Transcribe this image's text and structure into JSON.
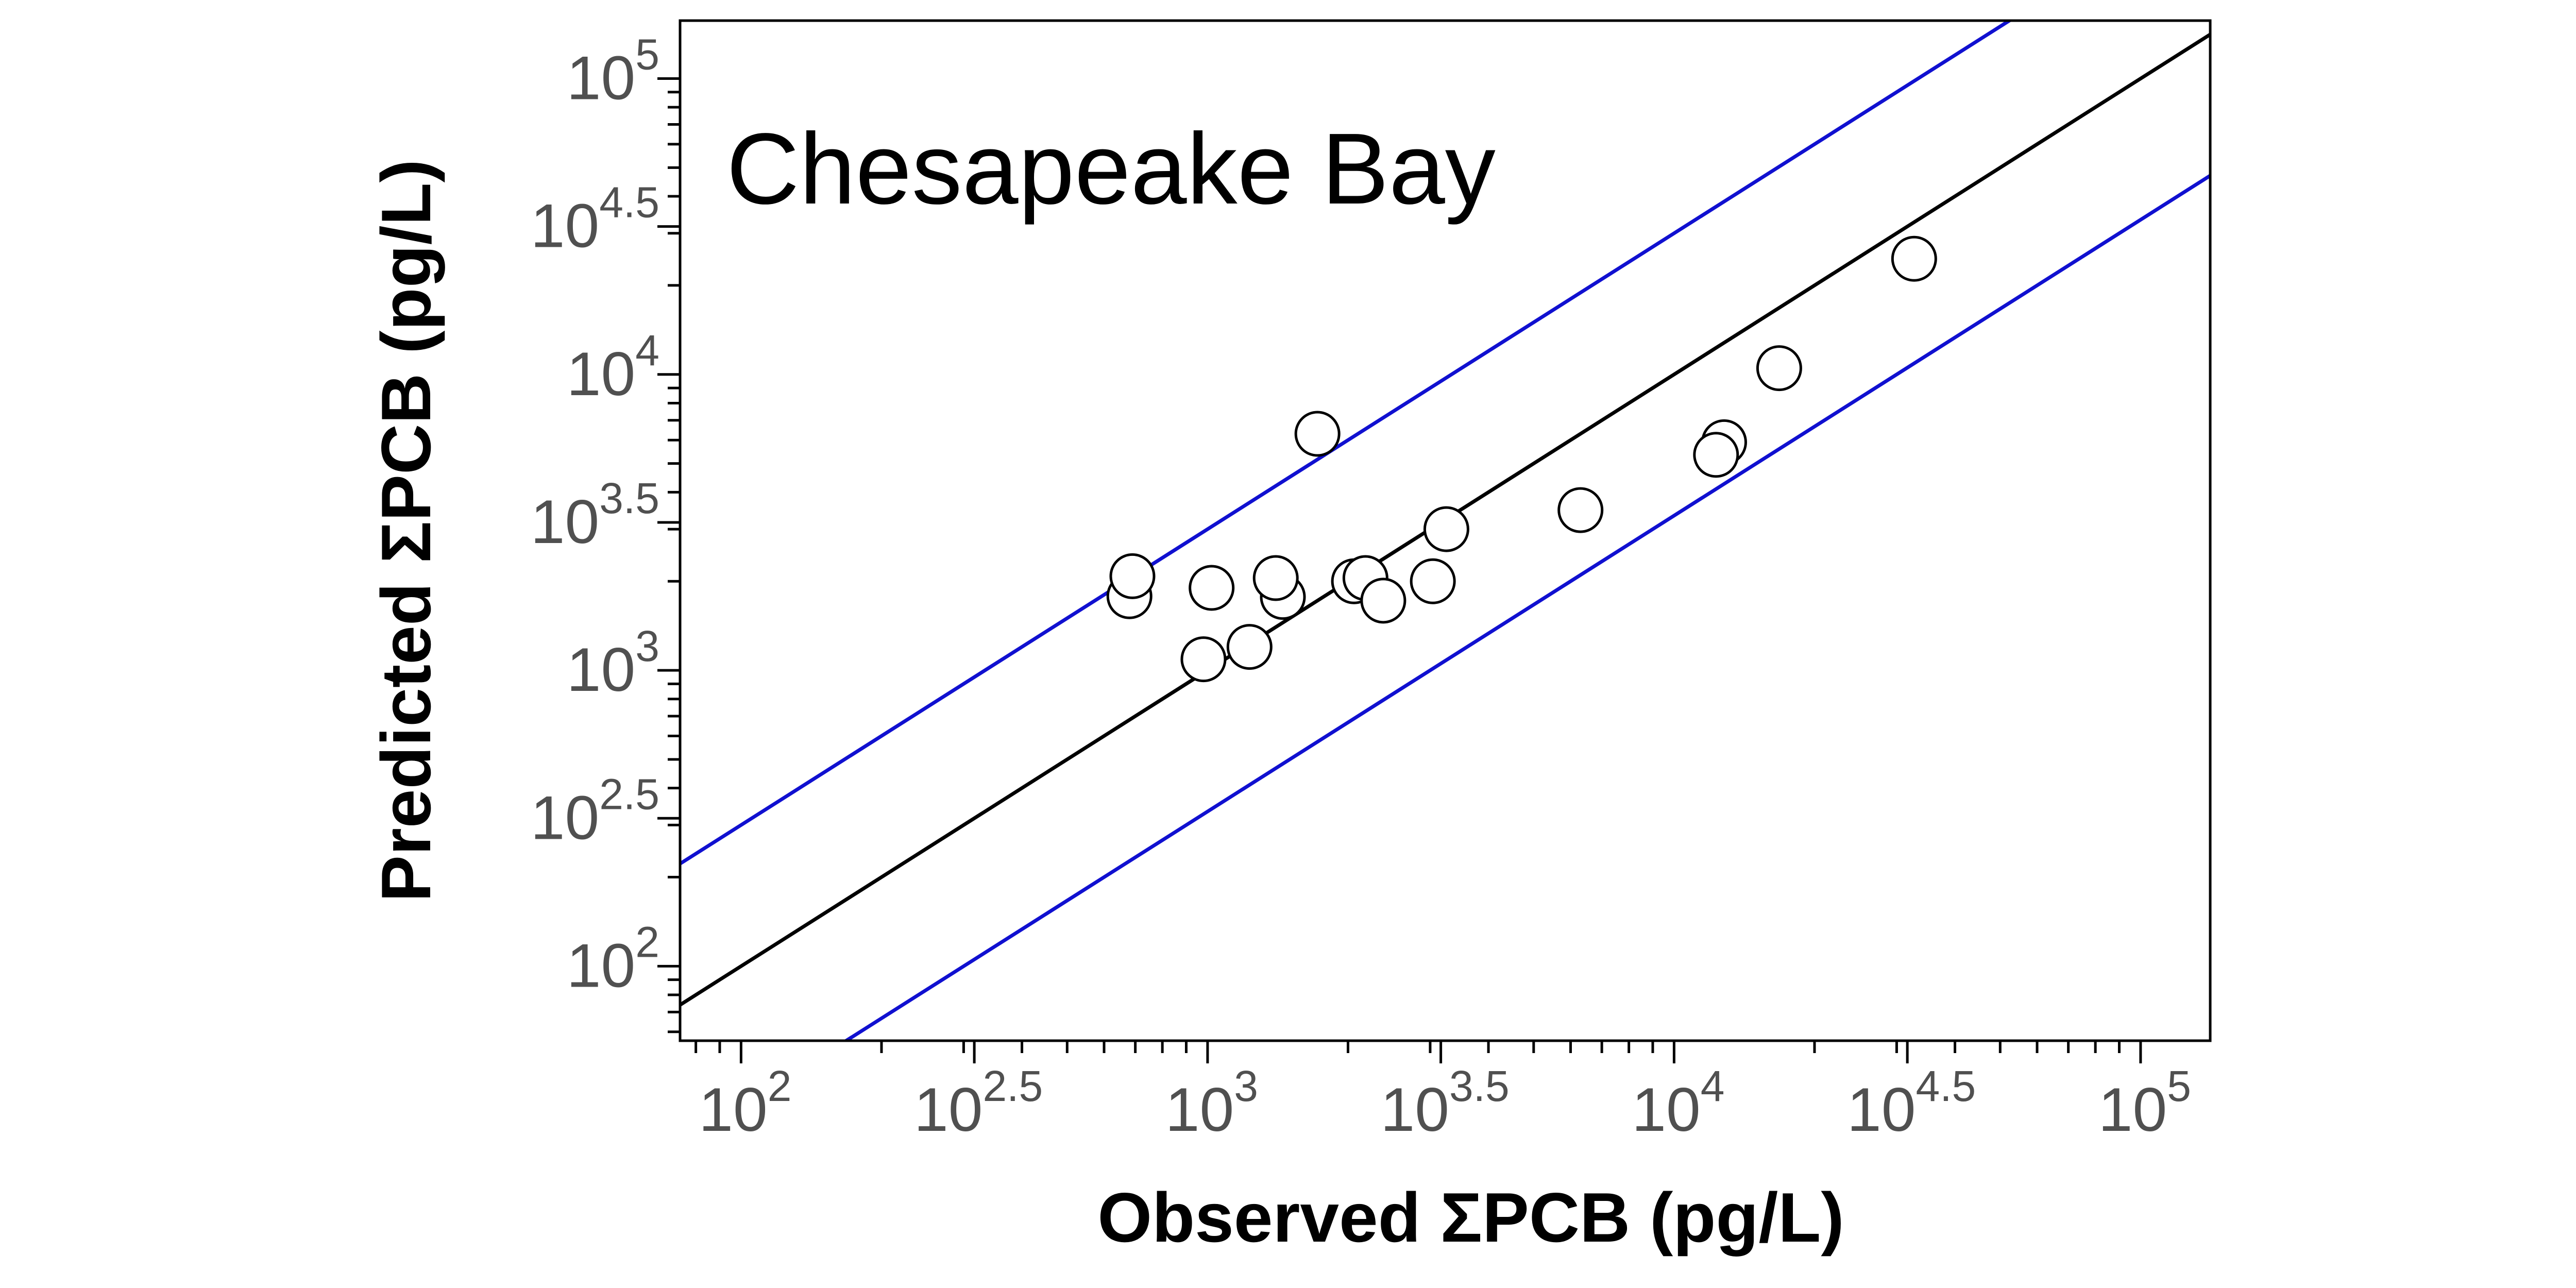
{
  "chart_data": {
    "type": "scatter",
    "title": "Chesapeake Bay",
    "xlabel": "Observed ΣPCB (pg/L)",
    "ylabel": "Predicted ΣPCB (pg/L)",
    "x_scale": "log10",
    "y_scale": "log10",
    "xlim": [
      74,
      141000
    ],
    "ylim": [
      56,
      157000
    ],
    "tick_labels": [
      {
        "base": "10",
        "exp": "2",
        "value": 100
      },
      {
        "base": "10",
        "exp": "2.5",
        "value": 316.2
      },
      {
        "base": "10",
        "exp": "3",
        "value": 1000
      },
      {
        "base": "10",
        "exp": "3.5",
        "value": 3162
      },
      {
        "base": "10",
        "exp": "4",
        "value": 10000
      },
      {
        "base": "10",
        "exp": "4.5",
        "value": 31623
      },
      {
        "base": "10",
        "exp": "5",
        "value": 100000
      }
    ],
    "grid": false,
    "reference_lines": [
      {
        "kind": "1:1",
        "factor": 1,
        "color": "#000000"
      },
      {
        "kind": "upper factor-of-3",
        "factor": 3,
        "color": "#1010d0"
      },
      {
        "kind": "lower factor-of-3",
        "factor": 0.3333,
        "color": "#1010d0"
      }
    ],
    "points": [
      {
        "x": 680,
        "y": 1780
      },
      {
        "x": 690,
        "y": 2080
      },
      {
        "x": 980,
        "y": 1090
      },
      {
        "x": 1020,
        "y": 1900
      },
      {
        "x": 1230,
        "y": 1200
      },
      {
        "x": 1450,
        "y": 1770
      },
      {
        "x": 1400,
        "y": 2050
      },
      {
        "x": 1720,
        "y": 6300
      },
      {
        "x": 2060,
        "y": 2000
      },
      {
        "x": 2180,
        "y": 2050
      },
      {
        "x": 2380,
        "y": 1720
      },
      {
        "x": 3040,
        "y": 2000
      },
      {
        "x": 3250,
        "y": 3000
      },
      {
        "x": 6300,
        "y": 3480
      },
      {
        "x": 12800,
        "y": 5900
      },
      {
        "x": 12300,
        "y": 5350
      },
      {
        "x": 16800,
        "y": 10500
      },
      {
        "x": 32700,
        "y": 24600
      }
    ],
    "marker": {
      "shape": "open-circle",
      "fill": "#ffffff",
      "stroke": "#000000"
    }
  }
}
